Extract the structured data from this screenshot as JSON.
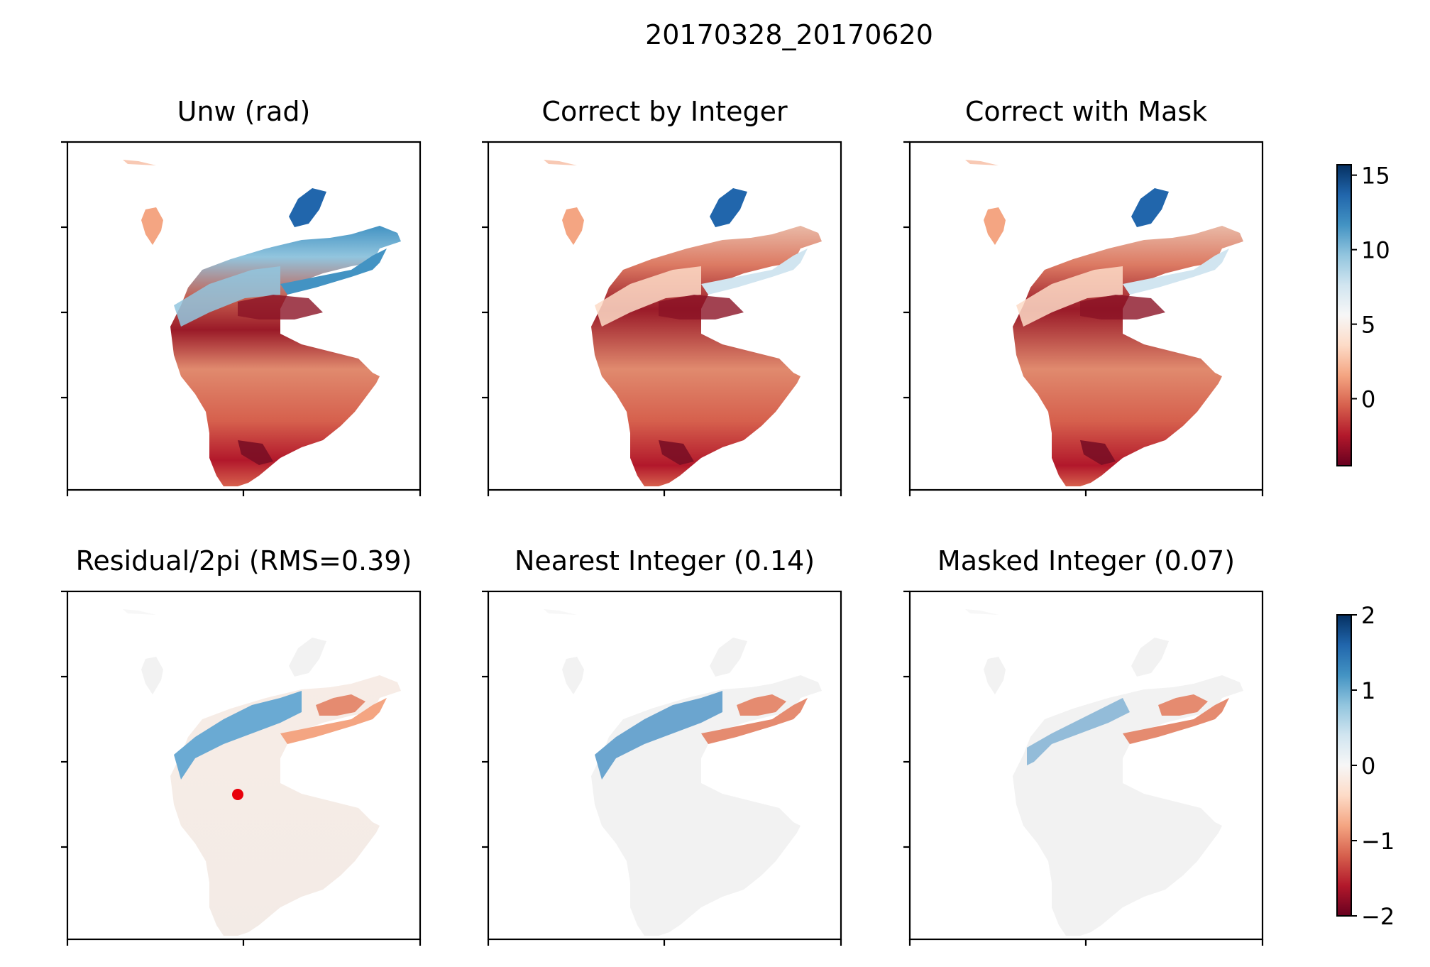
{
  "figure": {
    "title": "20170328_20170620"
  },
  "colorbars": [
    {
      "colormap": "RdBu",
      "ticks": [
        "15",
        "10",
        "5",
        "0"
      ],
      "range": [
        -4.5,
        15.7
      ]
    },
    {
      "colormap": "RdBu",
      "ticks": [
        "2",
        "1",
        "0",
        "−1",
        "−2"
      ],
      "range": [
        -2,
        2
      ]
    }
  ],
  "chart_data": [
    {
      "type": "heatmap",
      "title": "Unw (rad)",
      "colorbar": 0,
      "grid": false,
      "legend": "none",
      "x_ticklabels": [],
      "y_ticklabels": []
    },
    {
      "type": "heatmap",
      "title": "Correct by Integer",
      "colorbar": 0,
      "grid": false,
      "legend": "none",
      "x_ticklabels": [],
      "y_ticklabels": []
    },
    {
      "type": "heatmap",
      "title": "Correct with Mask",
      "colorbar": 0,
      "grid": false,
      "legend": "none",
      "x_ticklabels": [],
      "y_ticklabels": []
    },
    {
      "type": "heatmap",
      "title": "Residual/2pi (RMS=0.39)",
      "colorbar": 1,
      "grid": false,
      "legend": "none",
      "x_ticklabels": [],
      "y_ticklabels": [],
      "marker": {
        "shape": "dot",
        "color": "#e8000b"
      }
    },
    {
      "type": "heatmap",
      "title": "Nearest Integer (0.14)",
      "colorbar": 1,
      "grid": false,
      "legend": "none",
      "x_ticklabels": [],
      "y_ticklabels": []
    },
    {
      "type": "heatmap",
      "title": "Masked Integer (0.07)",
      "colorbar": 1,
      "grid": false,
      "legend": "none",
      "x_ticklabels": [],
      "y_ticklabels": []
    }
  ]
}
